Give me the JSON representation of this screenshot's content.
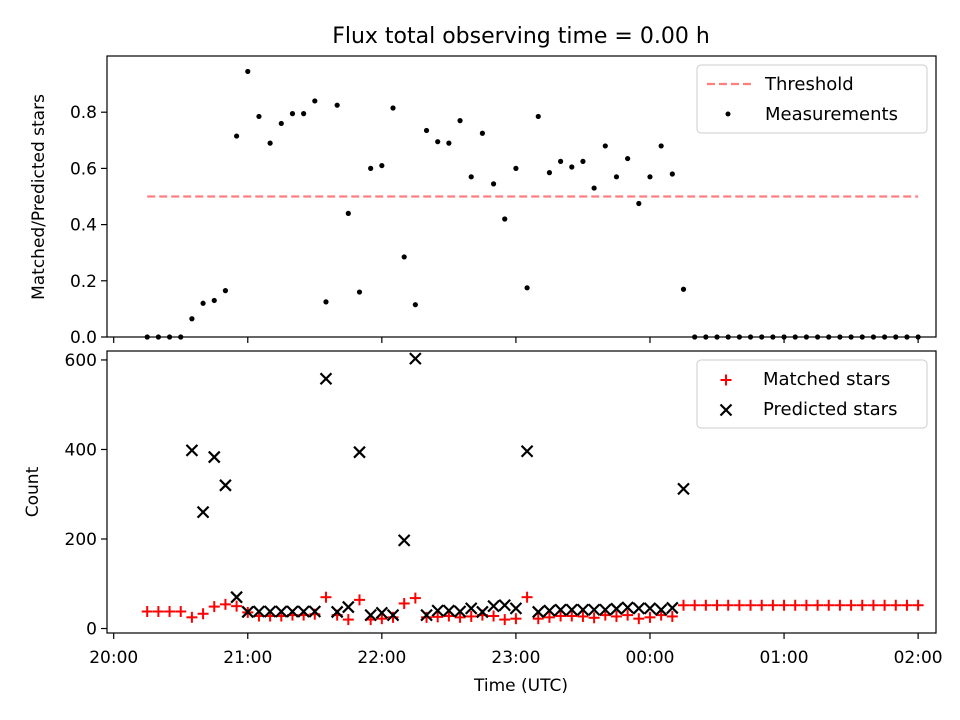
{
  "figure_title": "Flux total observing time = 0.00 h",
  "colors": {
    "threshold": "#ff7f7f",
    "measurement": "#000000",
    "matched": "#ff0000",
    "predicted": "#000000"
  },
  "chart_data": [
    {
      "type": "scatter",
      "title": "Flux total observing time = 0.00 h",
      "xlabel": "",
      "ylabel": "Matched/Predicted stars",
      "xlim": [
        "19:57",
        "02:08"
      ],
      "ylim": [
        0,
        1.0
      ],
      "yticks": [
        0.0,
        0.2,
        0.4,
        0.6,
        0.8
      ],
      "ytick_labels": [
        "0.0",
        "0.2",
        "0.4",
        "0.6",
        "0.8"
      ],
      "legend_position": "top-right",
      "legend": [
        "Threshold",
        "Measurements"
      ],
      "threshold": {
        "name": "Threshold",
        "y": 0.5,
        "x_range": [
          "20:15",
          "02:00"
        ]
      },
      "series": [
        {
          "name": "Measurements",
          "points": [
            [
              "20:15",
              0.0
            ],
            [
              "20:20",
              0.0
            ],
            [
              "20:25",
              0.0
            ],
            [
              "20:30",
              0.0
            ],
            [
              "20:35",
              0.065
            ],
            [
              "20:40",
              0.12
            ],
            [
              "20:45",
              0.13
            ],
            [
              "20:50",
              0.165
            ],
            [
              "20:55",
              0.715
            ],
            [
              "21:00",
              0.945
            ],
            [
              "21:05",
              0.785
            ],
            [
              "21:10",
              0.69
            ],
            [
              "21:15",
              0.76
            ],
            [
              "21:20",
              0.795
            ],
            [
              "21:25",
              0.795
            ],
            [
              "21:30",
              0.84
            ],
            [
              "21:35",
              0.125
            ],
            [
              "21:40",
              0.825
            ],
            [
              "21:45",
              0.44
            ],
            [
              "21:50",
              0.16
            ],
            [
              "21:55",
              0.6
            ],
            [
              "22:00",
              0.61
            ],
            [
              "22:05",
              0.815
            ],
            [
              "22:10",
              0.285
            ],
            [
              "22:15",
              0.115
            ],
            [
              "22:20",
              0.735
            ],
            [
              "22:25",
              0.695
            ],
            [
              "22:30",
              0.69
            ],
            [
              "22:35",
              0.77
            ],
            [
              "22:40",
              0.57
            ],
            [
              "22:45",
              0.725
            ],
            [
              "22:50",
              0.545
            ],
            [
              "22:55",
              0.42
            ],
            [
              "23:00",
              0.6
            ],
            [
              "23:05",
              0.175
            ],
            [
              "23:10",
              0.785
            ],
            [
              "23:15",
              0.585
            ],
            [
              "23:20",
              0.625
            ],
            [
              "23:25",
              0.605
            ],
            [
              "23:30",
              0.625
            ],
            [
              "23:35",
              0.53
            ],
            [
              "23:40",
              0.68
            ],
            [
              "23:45",
              0.57
            ],
            [
              "23:50",
              0.635
            ],
            [
              "23:55",
              0.475
            ],
            [
              "00:00",
              0.57
            ],
            [
              "00:05",
              0.68
            ],
            [
              "00:10",
              0.58
            ],
            [
              "00:15",
              0.17
            ],
            [
              "00:20",
              0.0
            ],
            [
              "00:25",
              0.0
            ],
            [
              "00:30",
              0.0
            ],
            [
              "00:35",
              0.0
            ],
            [
              "00:40",
              0.0
            ],
            [
              "00:45",
              0.0
            ],
            [
              "00:50",
              0.0
            ],
            [
              "00:55",
              0.0
            ],
            [
              "01:00",
              0.0
            ],
            [
              "01:05",
              0.0
            ],
            [
              "01:10",
              0.0
            ],
            [
              "01:15",
              0.0
            ],
            [
              "01:20",
              0.0
            ],
            [
              "01:25",
              0.0
            ],
            [
              "01:30",
              0.0
            ],
            [
              "01:35",
              0.0
            ],
            [
              "01:40",
              0.0
            ],
            [
              "01:45",
              0.0
            ],
            [
              "01:50",
              0.0
            ],
            [
              "01:55",
              0.0
            ],
            [
              "02:00",
              0.0
            ]
          ]
        }
      ]
    },
    {
      "type": "scatter",
      "title": "",
      "xlabel": "Time (UTC)",
      "ylabel": "Count",
      "xlim": [
        "19:57",
        "02:08"
      ],
      "ylim": [
        -10,
        620
      ],
      "xticks": [
        "20:00",
        "21:00",
        "22:00",
        "23:00",
        "00:00",
        "01:00",
        "02:00"
      ],
      "yticks": [
        0,
        200,
        400,
        600
      ],
      "ytick_labels": [
        "0",
        "200",
        "400",
        "600"
      ],
      "legend_position": "top-right",
      "legend": [
        "Matched stars",
        "Predicted stars"
      ],
      "series": [
        {
          "name": "Matched stars",
          "marker": "+",
          "points": [
            [
              "20:15",
              38
            ],
            [
              "20:20",
              38
            ],
            [
              "20:25",
              38
            ],
            [
              "20:30",
              38
            ],
            [
              "20:35",
              25
            ],
            [
              "20:40",
              33
            ],
            [
              "20:45",
              49
            ],
            [
              "20:50",
              54
            ],
            [
              "20:55",
              50
            ],
            [
              "21:00",
              36
            ],
            [
              "21:05",
              28
            ],
            [
              "21:10",
              28
            ],
            [
              "21:15",
              28
            ],
            [
              "21:20",
              30
            ],
            [
              "21:25",
              30
            ],
            [
              "21:30",
              32
            ],
            [
              "21:35",
              70
            ],
            [
              "21:40",
              30
            ],
            [
              "21:45",
              20
            ],
            [
              "21:50",
              64
            ],
            [
              "21:55",
              20
            ],
            [
              "22:00",
              22
            ],
            [
              "22:05",
              25
            ],
            [
              "22:10",
              56
            ],
            [
              "22:15",
              68
            ],
            [
              "22:20",
              25
            ],
            [
              "22:25",
              26
            ],
            [
              "22:30",
              28
            ],
            [
              "22:35",
              25
            ],
            [
              "22:40",
              27
            ],
            [
              "22:45",
              30
            ],
            [
              "22:50",
              28
            ],
            [
              "22:55",
              20
            ],
            [
              "23:00",
              22
            ],
            [
              "23:05",
              70
            ],
            [
              "23:10",
              22
            ],
            [
              "23:15",
              25
            ],
            [
              "23:20",
              28
            ],
            [
              "23:25",
              28
            ],
            [
              "23:30",
              27
            ],
            [
              "23:35",
              24
            ],
            [
              "23:40",
              30
            ],
            [
              "23:45",
              27
            ],
            [
              "23:50",
              30
            ],
            [
              "23:55",
              22
            ],
            [
              "00:00",
              25
            ],
            [
              "00:05",
              30
            ],
            [
              "00:10",
              27
            ],
            [
              "00:15",
              52
            ],
            [
              "00:20",
              52
            ],
            [
              "00:25",
              52
            ],
            [
              "00:30",
              52
            ],
            [
              "00:35",
              52
            ],
            [
              "00:40",
              52
            ],
            [
              "00:45",
              52
            ],
            [
              "00:50",
              52
            ],
            [
              "00:55",
              52
            ],
            [
              "01:00",
              52
            ],
            [
              "01:05",
              52
            ],
            [
              "01:10",
              52
            ],
            [
              "01:15",
              52
            ],
            [
              "01:20",
              52
            ],
            [
              "01:25",
              52
            ],
            [
              "01:30",
              52
            ],
            [
              "01:35",
              52
            ],
            [
              "01:40",
              52
            ],
            [
              "01:45",
              52
            ],
            [
              "01:50",
              52
            ],
            [
              "01:55",
              52
            ],
            [
              "02:00",
              52
            ]
          ]
        },
        {
          "name": "Predicted stars",
          "marker": "x",
          "points": [
            [
              "20:35",
              398
            ],
            [
              "20:40",
              260
            ],
            [
              "20:45",
              383
            ],
            [
              "20:50",
              320
            ],
            [
              "20:55",
              70
            ],
            [
              "21:00",
              37
            ],
            [
              "21:05",
              38
            ],
            [
              "21:10",
              38
            ],
            [
              "21:15",
              38
            ],
            [
              "21:20",
              38
            ],
            [
              "21:25",
              38
            ],
            [
              "21:30",
              38
            ],
            [
              "21:35",
              558
            ],
            [
              "21:40",
              37
            ],
            [
              "21:45",
              48
            ],
            [
              "21:50",
              394
            ],
            [
              "21:55",
              30
            ],
            [
              "22:00",
              35
            ],
            [
              "22:05",
              30
            ],
            [
              "22:10",
              197
            ],
            [
              "22:15",
              603
            ],
            [
              "22:20",
              30
            ],
            [
              "22:25",
              40
            ],
            [
              "22:30",
              40
            ],
            [
              "22:35",
              38
            ],
            [
              "22:40",
              45
            ],
            [
              "22:45",
              37
            ],
            [
              "22:50",
              50
            ],
            [
              "22:55",
              52
            ],
            [
              "23:00",
              45
            ],
            [
              "23:05",
              396
            ],
            [
              "23:10",
              37
            ],
            [
              "23:15",
              40
            ],
            [
              "23:20",
              42
            ],
            [
              "23:25",
              42
            ],
            [
              "23:30",
              42
            ],
            [
              "23:35",
              42
            ],
            [
              "23:40",
              42
            ],
            [
              "23:45",
              44
            ],
            [
              "23:50",
              47
            ],
            [
              "23:55",
              45
            ],
            [
              "00:00",
              45
            ],
            [
              "00:05",
              42
            ],
            [
              "00:10",
              46
            ],
            [
              "00:15",
              312
            ]
          ]
        }
      ]
    }
  ]
}
